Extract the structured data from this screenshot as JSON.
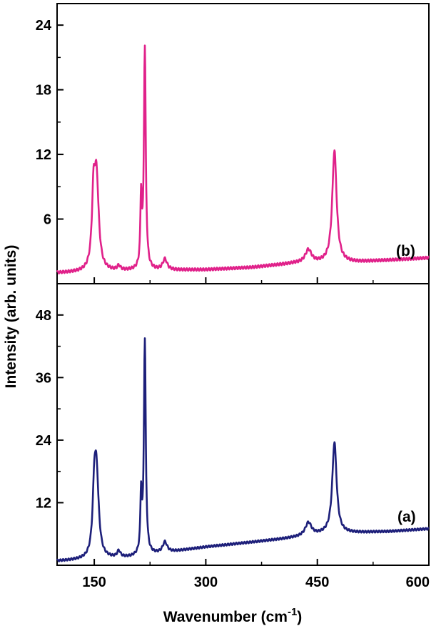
{
  "chart_data": [
    {
      "type": "line",
      "panel": "top",
      "label": "(b)",
      "color": "#e0218a",
      "xlim": [
        100,
        600
      ],
      "ylim": [
        0,
        26
      ],
      "yticks": [
        6,
        12,
        18,
        24
      ],
      "ytick_labels": [
        "6",
        "12",
        "18",
        "24"
      ],
      "peaks": [
        {
          "x": 149,
          "y": 6.0,
          "w": 2.5
        },
        {
          "x": 153,
          "y": 8.4,
          "w": 3.5
        },
        {
          "x": 183,
          "y": 0.4,
          "w": 2.5
        },
        {
          "x": 213,
          "y": 6.4,
          "w": 1.2
        },
        {
          "x": 218,
          "y": 20.5,
          "w": 1.5
        },
        {
          "x": 245,
          "y": 1.0,
          "w": 3.5
        },
        {
          "x": 438,
          "y": 1.2,
          "w": 5
        },
        {
          "x": 473,
          "y": 10.4,
          "w": 3.5
        }
      ],
      "baseline": [
        [
          100,
          1.0
        ],
        [
          200,
          1.2
        ],
        [
          300,
          1.3
        ],
        [
          360,
          1.5
        ],
        [
          420,
          1.9
        ],
        [
          500,
          2.0
        ],
        [
          600,
          2.4
        ]
      ],
      "series": [
        {
          "x": [
            100,
            149,
            153,
            183,
            213,
            218,
            245,
            438,
            473,
            600
          ],
          "y": [
            1.0,
            7.0,
            9.6,
            1.6,
            7.6,
            22.5,
            2.2,
            3.0,
            12.3,
            2.4
          ]
        }
      ]
    },
    {
      "type": "line",
      "panel": "bottom",
      "label": "(a)",
      "color": "#1d1f7a",
      "xlim": [
        100,
        600
      ],
      "ylim": [
        0,
        54
      ],
      "yticks": [
        12,
        24,
        36,
        48
      ],
      "ytick_labels": [
        "12",
        "24",
        "36",
        "48"
      ],
      "xticks": [
        150,
        300,
        450,
        600
      ],
      "xtick_labels": [
        "150",
        "300",
        "450",
        "600"
      ],
      "peaks": [
        {
          "x": 150,
          "y": 10.0,
          "w": 2.5
        },
        {
          "x": 153,
          "y": 15.8,
          "w": 3.5
        },
        {
          "x": 183,
          "y": 1.2,
          "w": 2.5
        },
        {
          "x": 213,
          "y": 11.0,
          "w": 1.2
        },
        {
          "x": 218,
          "y": 41.0,
          "w": 1.5
        },
        {
          "x": 245,
          "y": 2.0,
          "w": 3.5
        },
        {
          "x": 438,
          "y": 2.5,
          "w": 5
        },
        {
          "x": 473,
          "y": 17.5,
          "w": 3.5
        }
      ],
      "baseline": [
        [
          100,
          0.8
        ],
        [
          200,
          1.5
        ],
        [
          300,
          3.5
        ],
        [
          400,
          5.0
        ],
        [
          460,
          6.0
        ],
        [
          550,
          6.5
        ],
        [
          600,
          7.0
        ]
      ],
      "series": [
        {
          "x": [
            100,
            150,
            153,
            183,
            213,
            218,
            245,
            438,
            473,
            600
          ],
          "y": [
            0.8,
            14.0,
            24.0,
            2.7,
            16.0,
            45.0,
            5.0,
            10.0,
            25.5,
            7.0
          ]
        }
      ]
    }
  ],
  "ylabel": "Intensity (arb. units)",
  "xlabel": "Wavenumber (cm",
  "xlabel_sup": "-1",
  "xlabel_close": ")"
}
